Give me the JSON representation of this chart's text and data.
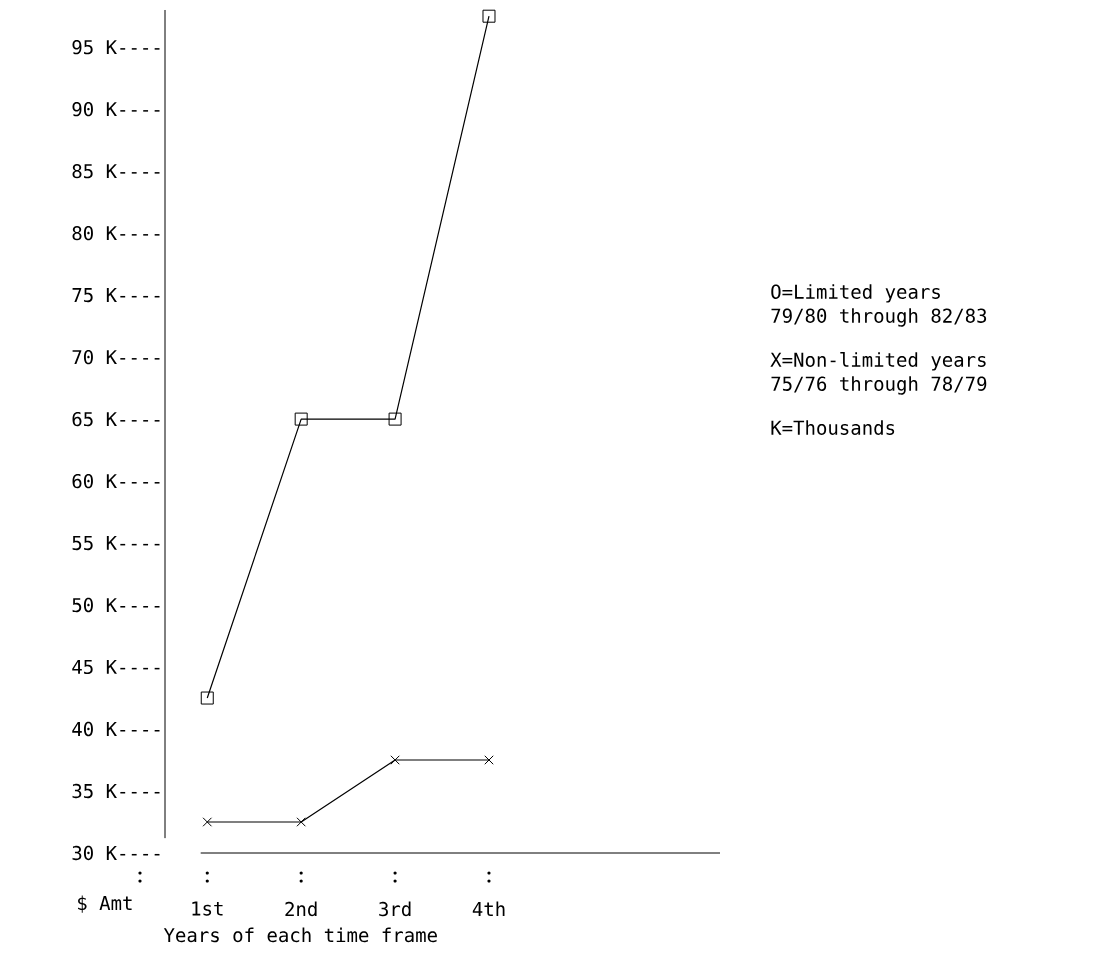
{
  "chart_data": {
    "type": "line",
    "categories": [
      "1st",
      "2nd",
      "3rd",
      "4th"
    ],
    "series": [
      {
        "color": "#000000",
        "marker": "square",
        "values": [
          42.5,
          65,
          65,
          97.5
        ]
      },
      {
        "color": "#000000",
        "marker": "cross",
        "values": [
          32.5,
          32.5,
          37.5,
          37.5
        ]
      }
    ],
    "xlabel": "Years of each time frame",
    "ylabel": "$ Amt",
    "ylim": [
      30,
      98
    ],
    "yticks": [
      {
        "value": 30,
        "label": "30 K----"
      },
      {
        "value": 35,
        "label": "35 K----"
      },
      {
        "value": 40,
        "label": "40 K----"
      },
      {
        "value": 45,
        "label": "45 K----"
      },
      {
        "value": 50,
        "label": "50 K----"
      },
      {
        "value": 55,
        "label": "55 K----"
      },
      {
        "value": 60,
        "label": "60 K----"
      },
      {
        "value": 65,
        "label": "65 K----"
      },
      {
        "value": 70,
        "label": "70 K----"
      },
      {
        "value": 75,
        "label": "75 K----"
      },
      {
        "value": 80,
        "label": "80 K----"
      },
      {
        "value": 85,
        "label": "85 K----"
      },
      {
        "value": 90,
        "label": "90 K----"
      },
      {
        "value": 95,
        "label": "95 K----"
      }
    ],
    "annotations": [
      "O=Limited years",
      "79/80 through 82/83",
      "X=Non-limited years",
      "75/76 through 78/79",
      "K=Thousands"
    ],
    "line_style": "solid"
  }
}
